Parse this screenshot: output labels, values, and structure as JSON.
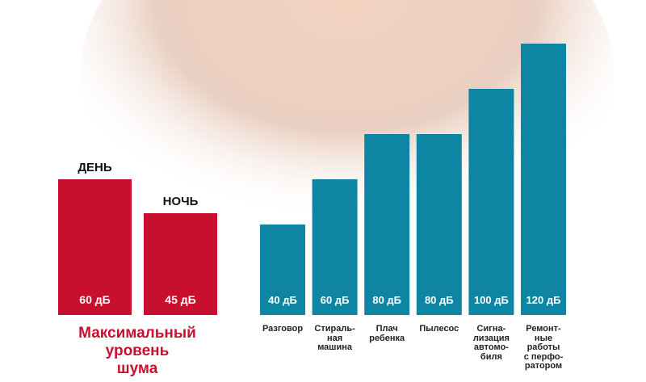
{
  "chart_data": [
    {
      "type": "bar",
      "title": "Максимальный\nуровень\nшума",
      "categories": [
        "ДЕНЬ",
        "НОЧЬ"
      ],
      "values": [
        60,
        45
      ],
      "value_labels": [
        "60 дБ",
        "45 дБ"
      ],
      "color": "#c8102e",
      "ylim": [
        0,
        120
      ]
    },
    {
      "type": "bar",
      "categories": [
        "Разговор",
        "Стираль-\nная\nмашина",
        "Плач\nребенка",
        "Пылесос",
        "Сигна-\nлизация\nавтомо-\nбиля",
        "Ремонт-\nные\nработы\nс перфо-\nратором"
      ],
      "values": [
        40,
        60,
        80,
        80,
        100,
        120
      ],
      "value_labels": [
        "40 дБ",
        "60 дБ",
        "80 дБ",
        "80 дБ",
        "100 дБ",
        "120 дБ"
      ],
      "color": "#0e86a3",
      "ylim": [
        0,
        120
      ]
    }
  ]
}
